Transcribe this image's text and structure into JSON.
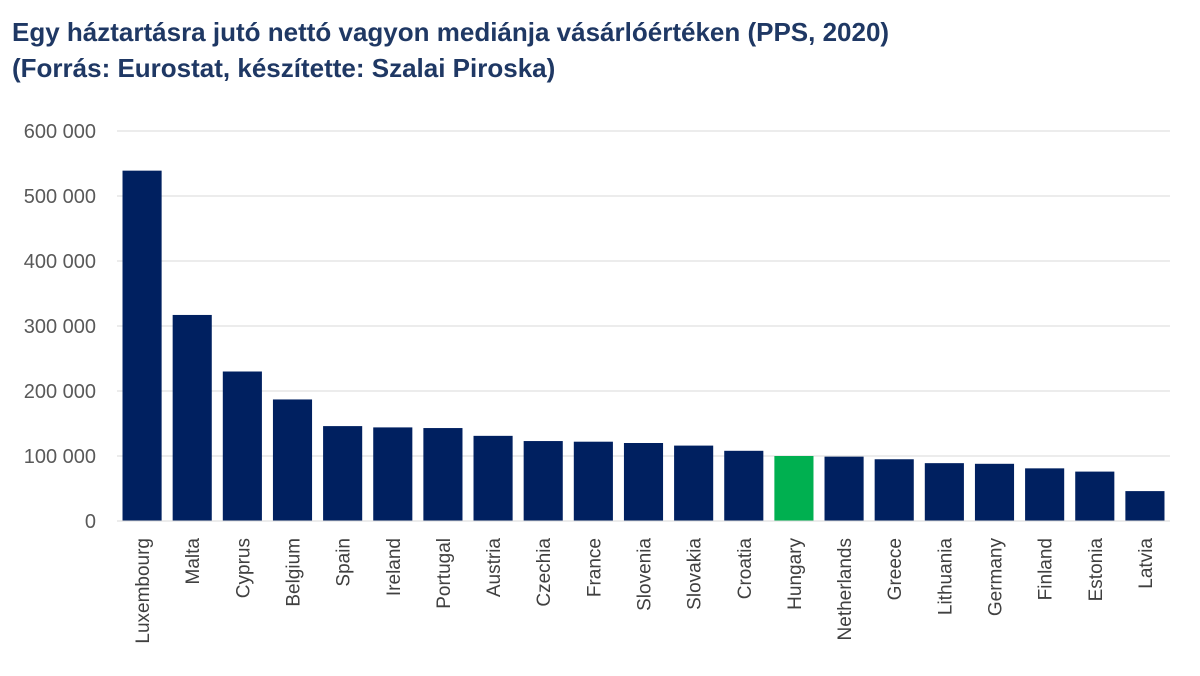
{
  "chart_data": {
    "type": "bar",
    "title": "Egy háztartásra jutó nettó vagyon mediánja vásárlóértéken (PPS, 2020)",
    "subtitle": "(Forrás: Eurostat, készítette: Szalai Piroska)",
    "xlabel": "",
    "ylabel": "",
    "ylim": [
      0,
      600000
    ],
    "yticks": [
      0,
      100000,
      200000,
      300000,
      400000,
      500000,
      600000
    ],
    "ytick_labels": [
      "0",
      "100 000",
      "200 000",
      "300 000",
      "400 000",
      "500 000",
      "600 000"
    ],
    "grid": true,
    "categories": [
      "Luxembourg",
      "Malta",
      "Cyprus",
      "Belgium",
      "Spain",
      "Ireland",
      "Portugal",
      "Austria",
      "Czechia",
      "France",
      "Slovenia",
      "Slovakia",
      "Croatia",
      "Hungary",
      "Netherlands",
      "Greece",
      "Lithuania",
      "Germany",
      "Finland",
      "Estonia",
      "Latvia"
    ],
    "values": [
      539000,
      317000,
      230000,
      187000,
      146000,
      144000,
      143000,
      131000,
      123000,
      122000,
      120000,
      116000,
      108000,
      100000,
      99000,
      95000,
      89000,
      88000,
      81000,
      76000,
      46000
    ],
    "colors": {
      "default": "#002060",
      "highlight": "#00b050",
      "grid": "#d9d9d9",
      "title": "#1f3864"
    },
    "highlight_category": "Hungary"
  }
}
